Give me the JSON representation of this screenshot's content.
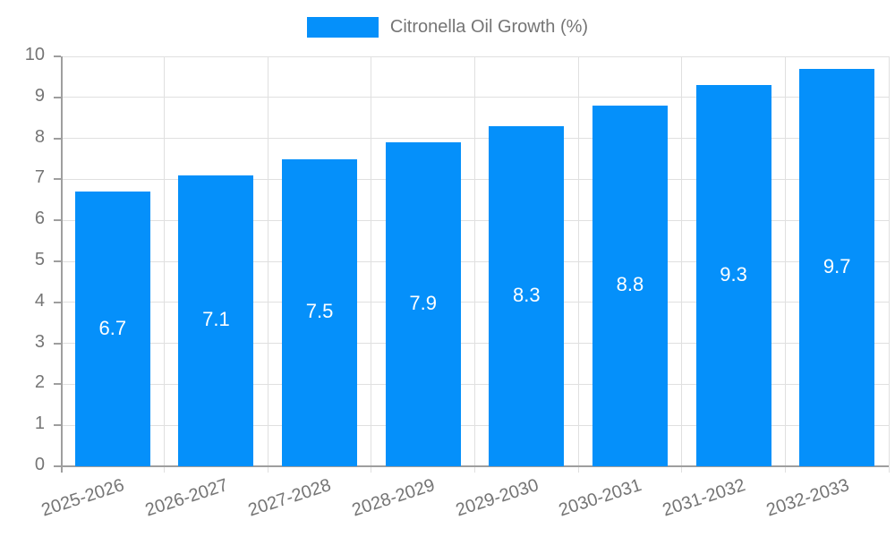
{
  "legend": {
    "label": "Citronella Oil Growth (%)"
  },
  "colors": {
    "bar": "#0590FA",
    "axis_text": "#757575",
    "grid_line": "#e0e0e0",
    "axis_line": "#9e9e9e",
    "value_label": "#ffffff",
    "background": "#ffffff"
  },
  "chart_data": {
    "type": "bar",
    "title": "Citronella Oil Growth (%)",
    "categories": [
      "2025-2026",
      "2026-2027",
      "2027-2028",
      "2028-2029",
      "2029-2030",
      "2030-2031",
      "2031-2032",
      "2032-2033"
    ],
    "values": [
      6.7,
      7.1,
      7.5,
      7.9,
      8.3,
      8.8,
      9.3,
      9.7
    ],
    "series": [
      {
        "name": "Citronella Oil Growth (%)",
        "values": [
          6.7,
          7.1,
          7.5,
          7.9,
          8.3,
          8.8,
          9.3,
          9.7
        ],
        "color": "#0590FA"
      }
    ],
    "xlabel": "",
    "ylabel": "",
    "ylim": [
      0,
      10
    ],
    "ytick_step": 1,
    "yticks": [
      0,
      1,
      2,
      3,
      4,
      5,
      6,
      7,
      8,
      9,
      10
    ],
    "grid": true,
    "legend_position": "top-center",
    "value_labels": "inside-middle-white",
    "x_tick_rotation_deg": -18
  }
}
